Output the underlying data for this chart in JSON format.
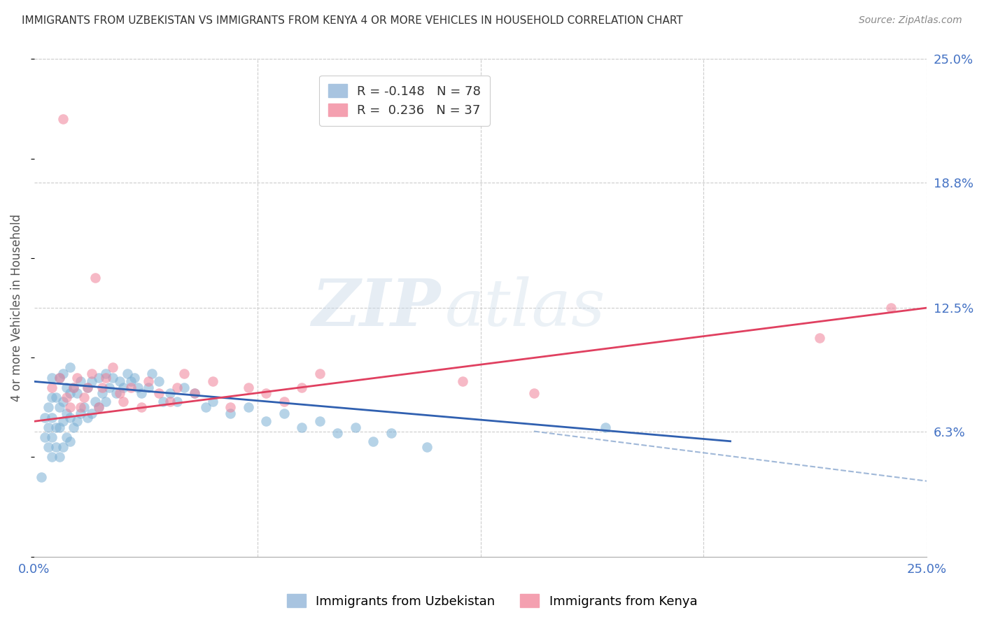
{
  "title": "IMMIGRANTS FROM UZBEKISTAN VS IMMIGRANTS FROM KENYA 4 OR MORE VEHICLES IN HOUSEHOLD CORRELATION CHART",
  "source": "Source: ZipAtlas.com",
  "ylabel": "4 or more Vehicles in Household",
  "xlim": [
    0.0,
    0.25
  ],
  "ylim": [
    0.0,
    0.25
  ],
  "ytick_positions_right": [
    0.25,
    0.188,
    0.125,
    0.063
  ],
  "ytick_labels_right": [
    "25.0%",
    "18.8%",
    "12.5%",
    "6.3%"
  ],
  "grid_color": "#cccccc",
  "watermark_zip": "ZIP",
  "watermark_atlas": "atlas",
  "uzbekistan_color": "#7bafd4",
  "kenya_color": "#f08098",
  "uzbekistan_line_color": "#3060b0",
  "kenya_line_color": "#e04060",
  "dashed_line_color": "#a0b8d8",
  "uzbekistan_scatter_x": [
    0.002,
    0.003,
    0.003,
    0.004,
    0.004,
    0.004,
    0.005,
    0.005,
    0.005,
    0.005,
    0.005,
    0.006,
    0.006,
    0.006,
    0.007,
    0.007,
    0.007,
    0.007,
    0.008,
    0.008,
    0.008,
    0.008,
    0.009,
    0.009,
    0.009,
    0.01,
    0.01,
    0.01,
    0.01,
    0.011,
    0.011,
    0.012,
    0.012,
    0.013,
    0.013,
    0.014,
    0.015,
    0.015,
    0.016,
    0.016,
    0.017,
    0.018,
    0.018,
    0.019,
    0.02,
    0.02,
    0.021,
    0.022,
    0.023,
    0.024,
    0.025,
    0.026,
    0.027,
    0.028,
    0.029,
    0.03,
    0.032,
    0.033,
    0.035,
    0.036,
    0.038,
    0.04,
    0.042,
    0.045,
    0.048,
    0.05,
    0.055,
    0.06,
    0.065,
    0.07,
    0.075,
    0.08,
    0.085,
    0.09,
    0.095,
    0.1,
    0.11,
    0.16
  ],
  "uzbekistan_scatter_y": [
    0.04,
    0.06,
    0.07,
    0.055,
    0.065,
    0.075,
    0.05,
    0.06,
    0.07,
    0.08,
    0.09,
    0.055,
    0.065,
    0.08,
    0.05,
    0.065,
    0.075,
    0.09,
    0.055,
    0.068,
    0.078,
    0.092,
    0.06,
    0.072,
    0.085,
    0.058,
    0.07,
    0.082,
    0.095,
    0.065,
    0.085,
    0.068,
    0.082,
    0.072,
    0.088,
    0.075,
    0.07,
    0.085,
    0.072,
    0.088,
    0.078,
    0.075,
    0.09,
    0.082,
    0.078,
    0.092,
    0.085,
    0.09,
    0.082,
    0.088,
    0.085,
    0.092,
    0.088,
    0.09,
    0.085,
    0.082,
    0.085,
    0.092,
    0.088,
    0.078,
    0.082,
    0.078,
    0.085,
    0.082,
    0.075,
    0.078,
    0.072,
    0.075,
    0.068,
    0.072,
    0.065,
    0.068,
    0.062,
    0.065,
    0.058,
    0.062,
    0.055,
    0.065
  ],
  "kenya_scatter_x": [
    0.005,
    0.007,
    0.008,
    0.009,
    0.01,
    0.011,
    0.012,
    0.013,
    0.014,
    0.015,
    0.016,
    0.017,
    0.018,
    0.019,
    0.02,
    0.022,
    0.024,
    0.025,
    0.027,
    0.03,
    0.032,
    0.035,
    0.038,
    0.04,
    0.042,
    0.045,
    0.05,
    0.055,
    0.06,
    0.065,
    0.07,
    0.075,
    0.08,
    0.12,
    0.14,
    0.22,
    0.24
  ],
  "kenya_scatter_y": [
    0.085,
    0.09,
    0.22,
    0.08,
    0.075,
    0.085,
    0.09,
    0.075,
    0.08,
    0.085,
    0.092,
    0.14,
    0.075,
    0.085,
    0.09,
    0.095,
    0.082,
    0.078,
    0.085,
    0.075,
    0.088,
    0.082,
    0.078,
    0.085,
    0.092,
    0.082,
    0.088,
    0.075,
    0.085,
    0.082,
    0.078,
    0.085,
    0.092,
    0.088,
    0.082,
    0.11,
    0.125
  ]
}
